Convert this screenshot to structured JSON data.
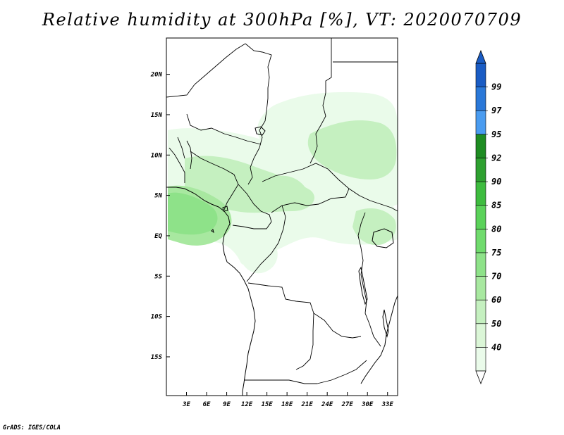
{
  "title": "Relative humidity at 300hPa [%], VT: 2020070709",
  "credit": "GrADS: IGES/COLA",
  "map": {
    "lat_labels": [
      "20N",
      "15N",
      "10N",
      "5N",
      "EQ",
      "5S",
      "10S",
      "15S"
    ],
    "lon_labels": [
      "3E",
      "6E",
      "9E",
      "12E",
      "15E",
      "18E",
      "21E",
      "24E",
      "27E",
      "30E",
      "33E"
    ],
    "lat_values": [
      20,
      15,
      10,
      5,
      0,
      -5,
      -10,
      -15
    ],
    "lon_values": [
      3,
      6,
      9,
      12,
      15,
      18,
      21,
      24,
      27,
      30,
      33
    ],
    "lat_range": [
      -19.8,
      24.5
    ],
    "lon_range": [
      0,
      34.5
    ]
  },
  "colorbar": {
    "levels": [
      "40",
      "50",
      "60",
      "70",
      "75",
      "80",
      "85",
      "90",
      "92",
      "95",
      "97",
      "99"
    ],
    "colors": [
      "#eafbea",
      "#dbf6d7",
      "#c5f0c0",
      "#a8e8a0",
      "#8ee289",
      "#70db6d",
      "#5bd25a",
      "#3ebc3f",
      "#2ea030",
      "#1e8c22",
      "#4a9cf0",
      "#2a78d8",
      "#1a5cc4"
    ],
    "under_color": "#ffffff",
    "over_color": "#1a5cc4"
  },
  "colors": {
    "humid_light": "#eafbea",
    "humid_mid": "#a8e8a0",
    "humid_strong": "#70db6d"
  }
}
